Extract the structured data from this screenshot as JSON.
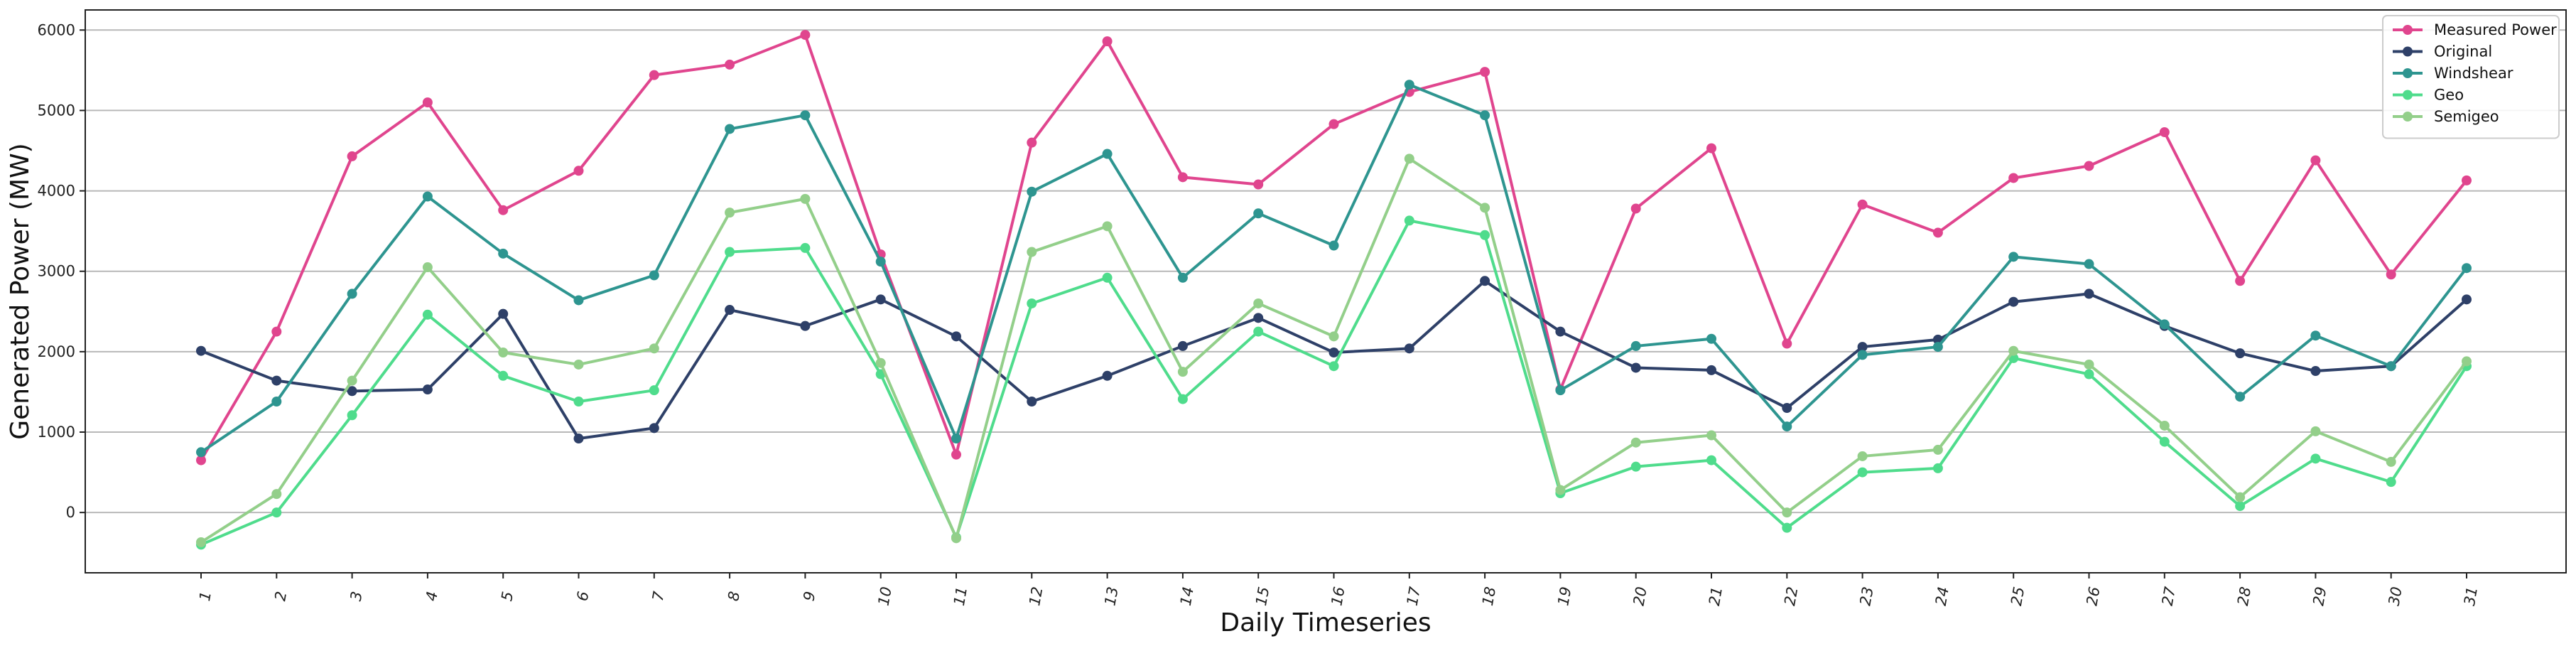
{
  "chart_data": {
    "type": "line",
    "xlabel": "Daily Timeseries",
    "ylabel": "Generated Power (MW)",
    "categories": [
      "1",
      "2",
      "3",
      "4",
      "5",
      "6",
      "7",
      "8",
      "9",
      "10",
      "11",
      "12",
      "13",
      "14",
      "15",
      "16",
      "17",
      "18",
      "19",
      "20",
      "21",
      "22",
      "23",
      "24",
      "25",
      "26",
      "27",
      "28",
      "29",
      "30",
      "31"
    ],
    "ylim": [
      -750,
      6250
    ],
    "yticks": [
      0,
      1000,
      2000,
      3000,
      4000,
      5000,
      6000
    ],
    "grid": "horizontal",
    "legend_position": "top-right",
    "series": [
      {
        "name": "Measured Power",
        "color": "#e0458e",
        "values": [
          650,
          2250,
          4430,
          5100,
          3760,
          4250,
          5440,
          5570,
          5940,
          3210,
          720,
          4600,
          5860,
          4170,
          4080,
          4830,
          5230,
          5480,
          1530,
          3780,
          4530,
          2100,
          3830,
          3480,
          4160,
          4310,
          4730,
          2880,
          4380,
          2960,
          4130
        ]
      },
      {
        "name": "Original",
        "color": "#2e4068",
        "values": [
          2010,
          1640,
          1510,
          1530,
          2470,
          920,
          1050,
          2520,
          2320,
          2650,
          2190,
          1380,
          1700,
          2070,
          2420,
          1990,
          2040,
          2880,
          2250,
          1800,
          1770,
          1300,
          2060,
          2150,
          2620,
          2720,
          2320,
          1980,
          1760,
          1820,
          2650
        ]
      },
      {
        "name": "Windshear",
        "color": "#2e9590",
        "values": [
          750,
          1380,
          2720,
          3930,
          3220,
          2640,
          2950,
          4770,
          4940,
          3120,
          920,
          3990,
          4460,
          2920,
          3720,
          3320,
          5320,
          4940,
          1520,
          2070,
          2160,
          1070,
          1960,
          2060,
          3180,
          3090,
          2340,
          1440,
          2200,
          1820,
          3040
        ]
      },
      {
        "name": "Geo",
        "color": "#4fdc8c",
        "values": [
          -400,
          0,
          1210,
          2460,
          1700,
          1380,
          1520,
          3240,
          3290,
          1720,
          -310,
          2600,
          2920,
          1410,
          2250,
          1820,
          3630,
          3450,
          240,
          570,
          650,
          -190,
          500,
          550,
          1920,
          1720,
          880,
          80,
          670,
          380,
          1820
        ]
      },
      {
        "name": "Semigeo",
        "color": "#93cf8a",
        "values": [
          -370,
          230,
          1640,
          3050,
          1990,
          1840,
          2040,
          3730,
          3900,
          1860,
          -320,
          3240,
          3560,
          1750,
          2600,
          2190,
          4400,
          3790,
          280,
          870,
          960,
          0,
          700,
          780,
          2010,
          1840,
          1080,
          190,
          1010,
          630,
          1880
        ]
      }
    ]
  }
}
